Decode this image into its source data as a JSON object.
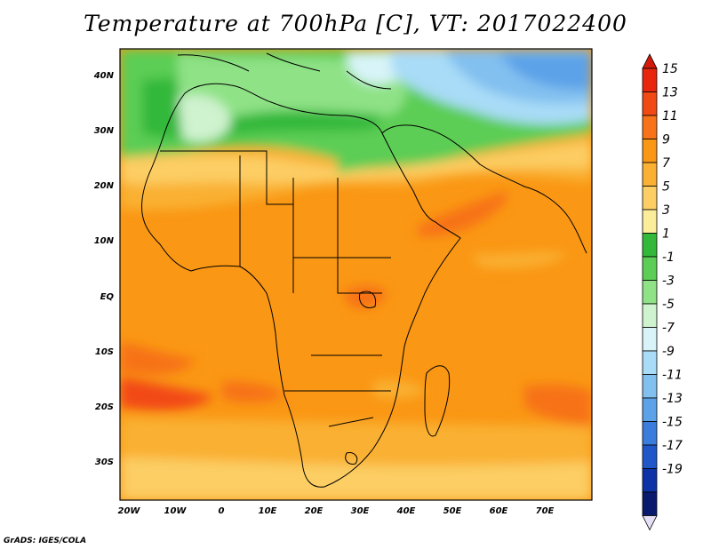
{
  "title": "Temperature at 700hPa [C], VT: 2017022400",
  "credit": "GrADS: IGES/COLA",
  "lat_labels": [
    "40N",
    "30N",
    "20N",
    "10N",
    "EQ",
    "10S",
    "20S",
    "30S"
  ],
  "lon_labels": [
    "20W",
    "10W",
    "0",
    "10E",
    "20E",
    "30E",
    "40E",
    "50E",
    "60E",
    "70E"
  ],
  "colorbar": {
    "labels": [
      "15",
      "13",
      "11",
      "9",
      "7",
      "5",
      "3",
      "1",
      "-1",
      "-3",
      "-5",
      "-7",
      "-9",
      "-11",
      "-13",
      "-15",
      "-17",
      "-19"
    ],
    "colors": [
      "#e8260e",
      "#f24a14",
      "#f77218",
      "#fa9714",
      "#fab032",
      "#fcce64",
      "#fbed9a",
      "#33b83a",
      "#5ccd55",
      "#8fe286",
      "#cff2cf",
      "#d8f4f8",
      "#a9dcf7",
      "#82c0f0",
      "#5ba2e8",
      "#3b7ddc",
      "#1f56c8",
      "#0c32a8",
      "#091a6e"
    ]
  }
}
